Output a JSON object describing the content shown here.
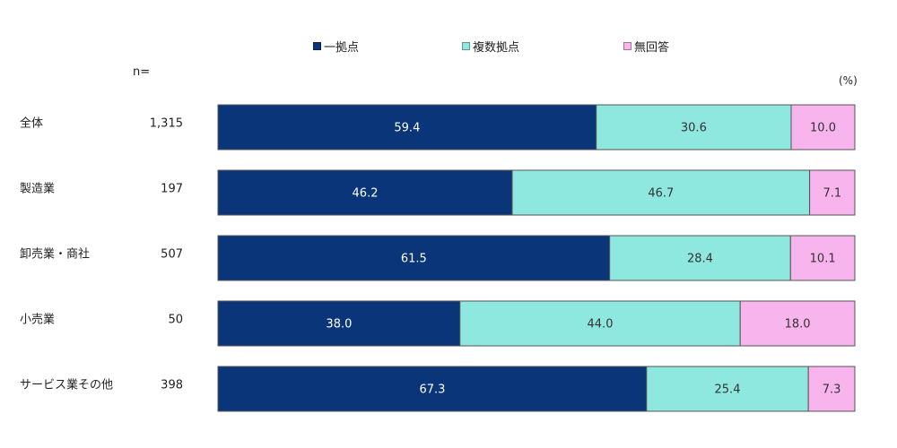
{
  "chart_data": {
    "type": "bar",
    "orientation": "horizontal",
    "stacked": true,
    "unit_label": "(%)",
    "n_label": "n=",
    "categories": [
      "全体",
      "製造業",
      "卸売業・商社",
      "小売業",
      "サービス業その他"
    ],
    "n": [
      "1,315",
      "197",
      "507",
      "50",
      "398"
    ],
    "series": [
      {
        "name": "一拠点",
        "values": [
          59.4,
          46.2,
          61.5,
          38.0,
          67.3
        ],
        "labels": [
          "59.4",
          "46.2",
          "61.5",
          "38.0",
          "67.3"
        ]
      },
      {
        "name": "複数拠点",
        "values": [
          30.6,
          46.7,
          28.4,
          44.0,
          25.4
        ],
        "labels": [
          "30.6",
          "46.7",
          "28.4",
          "44.0",
          "25.4"
        ]
      },
      {
        "name": "無回答",
        "values": [
          10.0,
          7.1,
          10.1,
          18.0,
          7.3
        ],
        "labels": [
          "10.0",
          "7.1",
          "10.1",
          "18.0",
          "7.3"
        ]
      }
    ],
    "colors": [
      "#0a3578",
      "#8fe8df",
      "#f8b4ec"
    ],
    "label_colors": [
      "#ffffff",
      "#333333",
      "#333333"
    ],
    "xlim": [
      0,
      100
    ],
    "legend": "top",
    "grid": false
  }
}
